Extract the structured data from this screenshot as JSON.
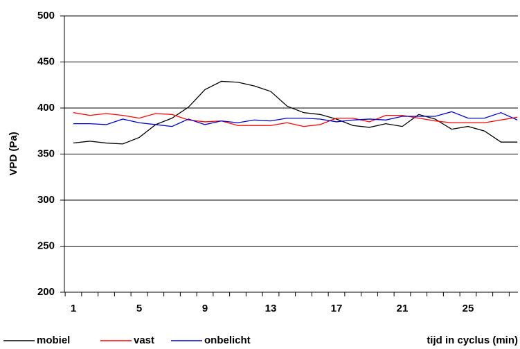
{
  "chart_data": {
    "type": "line",
    "y_label": "VPD (Pa)",
    "x_label": "tijd in cyclus (min)",
    "categories": [
      1,
      null,
      null,
      null,
      5,
      null,
      null,
      null,
      9,
      null,
      null,
      null,
      13,
      null,
      null,
      null,
      17,
      null,
      null,
      null,
      21,
      null,
      null,
      null,
      25,
      null,
      null,
      null
    ],
    "series": [
      {
        "name": "mobiel",
        "color": "#000000",
        "values": [
          362,
          364,
          362,
          361,
          368,
          382,
          389,
          401,
          420,
          429,
          428,
          424,
          418,
          402,
          395,
          393,
          388,
          381,
          379,
          383,
          380,
          393,
          388,
          377,
          380,
          375,
          363,
          363
        ]
      },
      {
        "name": "vast",
        "color": "#ff0000",
        "values": [
          395,
          392,
          394,
          392,
          389,
          394,
          393,
          387,
          385,
          386,
          381,
          381,
          381,
          384,
          380,
          382,
          389,
          389,
          385,
          392,
          392,
          389,
          386,
          384,
          384,
          384,
          387,
          390
        ]
      },
      {
        "name": "onbelicht",
        "color": "#0000cc",
        "values": [
          383,
          383,
          382,
          388,
          384,
          382,
          380,
          388,
          382,
          386,
          384,
          387,
          386,
          389,
          389,
          388,
          385,
          387,
          388,
          387,
          391,
          391,
          391,
          396,
          389,
          389,
          395,
          387
        ]
      }
    ],
    "ylim": [
      200,
      500
    ],
    "yticks": [
      200,
      250,
      300,
      350,
      400,
      450,
      500
    ],
    "grid": true
  }
}
